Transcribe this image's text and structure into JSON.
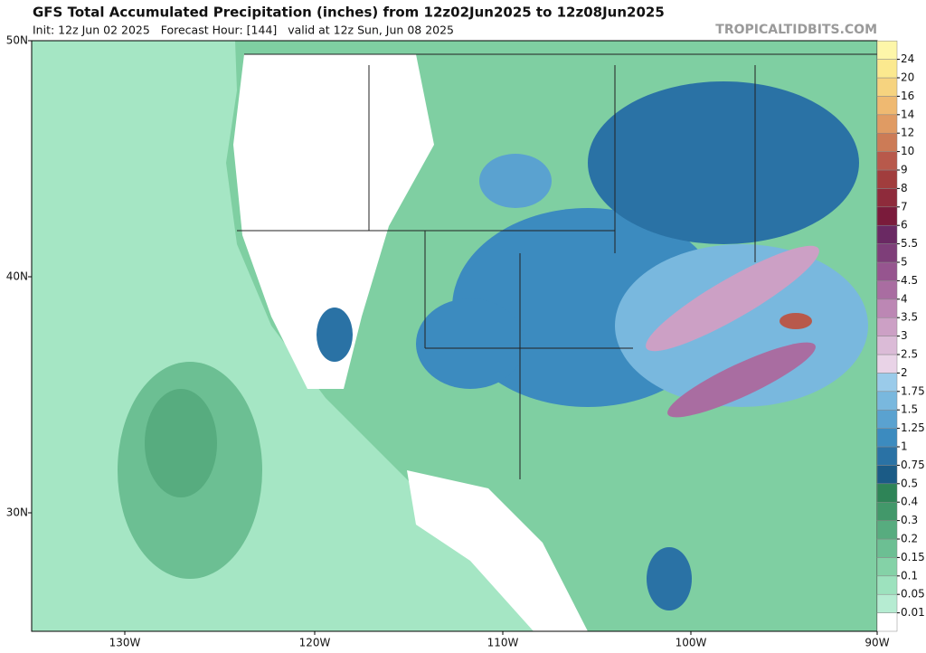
{
  "header": {
    "title": "GFS Total Accumulated Precipitation (inches) from 12z02Jun2025 to 12z08Jun2025",
    "subtitle": "Init: 12z Jun 02 2025   Forecast Hour: [144]   valid at 12z Sun, Jun 08 2025",
    "source": "TROPICALTIDBITS.COM"
  },
  "map": {
    "lat_labels": [
      "50N",
      "40N",
      "30N"
    ],
    "lon_labels": [
      "130W",
      "120W",
      "110W",
      "100W",
      "90W"
    ]
  },
  "colorbar": {
    "levels": [
      {
        "label": "0.01",
        "color": "#b6ecd2"
      },
      {
        "label": "0.05",
        "color": "#9de2be"
      },
      {
        "label": "0.1",
        "color": "#84d2a7"
      },
      {
        "label": "0.15",
        "color": "#6cbf93"
      },
      {
        "label": "0.2",
        "color": "#57ac7f"
      },
      {
        "label": "0.3",
        "color": "#42986a"
      },
      {
        "label": "0.4",
        "color": "#2e8457"
      },
      {
        "label": "0.5",
        "color": "#1b5b86"
      },
      {
        "label": "0.75",
        "color": "#2a72a5"
      },
      {
        "label": "1",
        "color": "#3c8bbf"
      },
      {
        "label": "1.25",
        "color": "#5aa2d0"
      },
      {
        "label": "1.5",
        "color": "#79b8de"
      },
      {
        "label": "1.75",
        "color": "#9acbea"
      },
      {
        "label": "2",
        "color": "#e9d3e7"
      },
      {
        "label": "2.5",
        "color": "#dbbbd7"
      },
      {
        "label": "3",
        "color": "#cca0c5"
      },
      {
        "label": "3.5",
        "color": "#bc87b4"
      },
      {
        "label": "4",
        "color": "#a96da1"
      },
      {
        "label": "4.5",
        "color": "#96558f"
      },
      {
        "label": "5",
        "color": "#7e3e79"
      },
      {
        "label": "5.5",
        "color": "#6a2963"
      },
      {
        "label": "6",
        "color": "#7a1b3b"
      },
      {
        "label": "7",
        "color": "#8e2b3b"
      },
      {
        "label": "8",
        "color": "#a13d3d"
      },
      {
        "label": "9",
        "color": "#b8594b"
      },
      {
        "label": "10",
        "color": "#cc7b56"
      },
      {
        "label": "12",
        "color": "#e09b63"
      },
      {
        "label": "14",
        "color": "#efb971"
      },
      {
        "label": "16",
        "color": "#f6d37f"
      },
      {
        "label": "20",
        "color": "#fbe98f"
      },
      {
        "label": "24",
        "color": "#fdf6a9"
      }
    ]
  }
}
